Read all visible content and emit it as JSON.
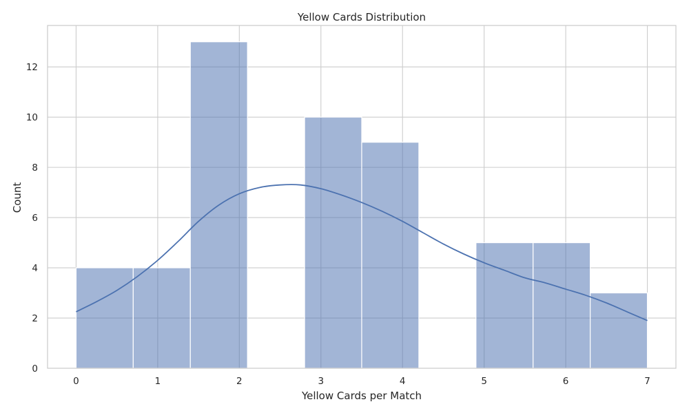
{
  "chart_data": {
    "type": "bar",
    "title": "Yellow Cards Distribution",
    "xlabel": "Yellow Cards per Match",
    "ylabel": "Count",
    "xlim": [
      -0.35,
      7.35
    ],
    "ylim": [
      0,
      13.65
    ],
    "x_ticks": [
      "0",
      "1",
      "2",
      "3",
      "4",
      "5",
      "6",
      "7"
    ],
    "y_ticks": [
      "0",
      "2",
      "4",
      "6",
      "8",
      "10",
      "12"
    ],
    "bins": [
      {
        "start": 0.0,
        "end": 0.7,
        "count": 4
      },
      {
        "start": 0.7,
        "end": 1.4,
        "count": 4
      },
      {
        "start": 1.4,
        "end": 2.1,
        "count": 13
      },
      {
        "start": 2.1,
        "end": 2.8,
        "count": 0
      },
      {
        "start": 2.8,
        "end": 3.5,
        "count": 10
      },
      {
        "start": 3.5,
        "end": 4.2,
        "count": 9
      },
      {
        "start": 4.2,
        "end": 4.9,
        "count": 0
      },
      {
        "start": 4.9,
        "end": 5.6,
        "count": 5
      },
      {
        "start": 5.6,
        "end": 6.3,
        "count": 5
      },
      {
        "start": 6.3,
        "end": 7.0,
        "count": 3
      }
    ],
    "kde": {
      "x": [
        0,
        0.25,
        0.5,
        0.75,
        1,
        1.25,
        1.5,
        1.75,
        2,
        2.25,
        2.5,
        2.75,
        3,
        3.25,
        3.5,
        3.75,
        4,
        4.25,
        4.5,
        4.75,
        5,
        5.25,
        5.5,
        5.75,
        6,
        6.25,
        6.5,
        6.75,
        7
      ],
      "y": [
        2.25,
        2.65,
        3.1,
        3.65,
        4.3,
        5.05,
        5.85,
        6.5,
        6.95,
        7.2,
        7.3,
        7.3,
        7.15,
        6.9,
        6.6,
        6.25,
        5.85,
        5.4,
        4.95,
        4.55,
        4.2,
        3.9,
        3.6,
        3.4,
        3.15,
        2.9,
        2.6,
        2.25,
        1.9
      ]
    },
    "colors": {
      "bar_fill": "#a1b5d7",
      "bar_edge": "#ffffff",
      "kde_line": "#4c72b0",
      "grid": "#cccccc",
      "frame": "#cccccc",
      "text": "#262626"
    },
    "grid": true
  }
}
